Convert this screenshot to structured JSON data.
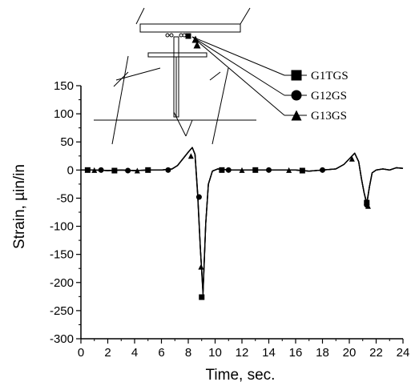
{
  "chart_data": {
    "type": "line",
    "title": "",
    "xlabel": "Time, sec.",
    "ylabel": "Strain, µin/in",
    "xlim": [
      0,
      24
    ],
    "ylim": [
      -300,
      150
    ],
    "xticks": [
      "0",
      "2",
      "4",
      "6",
      "8",
      "10",
      "12",
      "14",
      "16",
      "18",
      "20",
      "22",
      "24"
    ],
    "yticks": [
      "150",
      "100",
      "50",
      "0",
      "-50",
      "-100",
      "-150",
      "-200",
      "-250",
      "-300"
    ],
    "grid": false,
    "legend_position": "top-right, inside plot",
    "series": [
      {
        "name": "G1TGS",
        "marker": "square",
        "x": [
          0,
          1,
          2,
          3,
          4,
          5,
          6,
          6.8,
          7.2,
          7.6,
          8.0,
          8.3,
          8.5,
          8.7,
          8.9,
          9.1,
          9.3,
          9.5,
          9.8,
          10.2,
          11,
          12,
          13,
          14,
          15,
          16,
          17,
          18,
          19,
          19.6,
          20.0,
          20.4,
          20.7,
          20.9,
          21.1,
          21.3,
          21.5,
          21.7,
          22,
          22.5,
          23,
          23.5,
          24
        ],
        "y": [
          0,
          0,
          -1,
          0,
          -1,
          0,
          0,
          2,
          8,
          20,
          32,
          40,
          28,
          -40,
          -140,
          -222,
          -95,
          -25,
          -2,
          2,
          0,
          0,
          0,
          0,
          0,
          0,
          -2,
          0,
          2,
          10,
          20,
          30,
          15,
          -15,
          -40,
          -60,
          -30,
          -5,
          0,
          2,
          0,
          4,
          3
        ]
      },
      {
        "name": "G12GS",
        "marker": "circle",
        "x": [
          0,
          1,
          2,
          3,
          4,
          5,
          6,
          6.8,
          7.2,
          7.6,
          8.0,
          8.3,
          8.5,
          8.7,
          8.9,
          9.1,
          9.3,
          9.5,
          9.8,
          10.2,
          11,
          12,
          13,
          14,
          15,
          16,
          17,
          18,
          19,
          19.6,
          20.0,
          20.4,
          20.7,
          20.9,
          21.1,
          21.3,
          21.5,
          21.7,
          22,
          22.5,
          23,
          23.5,
          24
        ],
        "y": [
          0,
          0,
          -1,
          0,
          -1,
          0,
          0,
          2,
          8,
          20,
          32,
          40,
          28,
          -45,
          -140,
          -218,
          -95,
          -25,
          -2,
          2,
          0,
          0,
          0,
          0,
          0,
          0,
          -2,
          0,
          2,
          10,
          20,
          30,
          15,
          -15,
          -40,
          -62,
          -30,
          -5,
          0,
          2,
          0,
          4,
          3
        ]
      },
      {
        "name": "G13GS",
        "marker": "triangle",
        "x": [
          0,
          1,
          2,
          3,
          4,
          5,
          6,
          6.8,
          7.2,
          7.6,
          8.0,
          8.3,
          8.5,
          8.7,
          8.9,
          9.1,
          9.3,
          9.5,
          9.8,
          10.2,
          11,
          12,
          13,
          14,
          15,
          16,
          17,
          18,
          19,
          19.6,
          20.0,
          20.4,
          20.7,
          20.9,
          21.1,
          21.3,
          21.5,
          21.7,
          22,
          22.5,
          23,
          23.5,
          24
        ],
        "y": [
          0,
          0,
          -1,
          0,
          -1,
          0,
          0,
          2,
          8,
          20,
          32,
          40,
          28,
          -42,
          -140,
          -215,
          -95,
          -25,
          -2,
          2,
          0,
          0,
          0,
          0,
          0,
          0,
          -2,
          0,
          2,
          10,
          20,
          30,
          15,
          -15,
          -40,
          -58,
          -30,
          -5,
          0,
          2,
          0,
          4,
          3
        ]
      }
    ],
    "marker_points": {
      "G1TGS": [
        [
          0.5,
          0
        ],
        [
          2.5,
          -1
        ],
        [
          5.0,
          0
        ],
        [
          9.0,
          -226
        ],
        [
          10.5,
          0
        ],
        [
          13.0,
          0
        ],
        [
          16.5,
          -1
        ],
        [
          21.3,
          -58
        ]
      ],
      "G12GS": [
        [
          1.5,
          0
        ],
        [
          3.5,
          -1
        ],
        [
          6.5,
          0
        ],
        [
          8.8,
          -48
        ],
        [
          11.0,
          0
        ],
        [
          14.0,
          0
        ],
        [
          18.0,
          0
        ],
        [
          21.3,
          -62
        ]
      ],
      "G13GS": [
        [
          1.0,
          0
        ],
        [
          4.2,
          -1
        ],
        [
          8.2,
          25
        ],
        [
          8.95,
          -172
        ],
        [
          12.0,
          0
        ],
        [
          15.5,
          0
        ],
        [
          20.2,
          20
        ],
        [
          21.4,
          -64
        ]
      ]
    }
  },
  "legend": {
    "items": [
      {
        "label": "G1TGS",
        "marker": "square"
      },
      {
        "label": "G12GS",
        "marker": "circle"
      },
      {
        "label": "G13GS",
        "marker": "triangle"
      }
    ]
  },
  "colors": {
    "line": "#000000",
    "background": "#ffffff"
  },
  "inset": {
    "description_icon": "girder-cross-section-icon"
  }
}
